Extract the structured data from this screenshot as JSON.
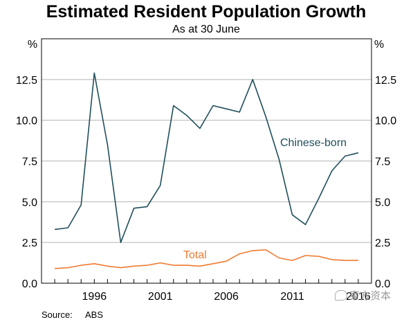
{
  "chart_data": {
    "type": "line",
    "title": "Estimated Resident Population Growth",
    "subtitle": "As at 30 June",
    "unit_left": "%",
    "unit_right": "%",
    "xlabel": "",
    "ylabel": "",
    "ylim": [
      0,
      15
    ],
    "y_ticks": [
      0,
      2.5,
      5,
      7.5,
      10,
      12.5
    ],
    "y_tick_labels": [
      "0.0",
      "2.5",
      "5.0",
      "7.5",
      "10.0",
      "12.5"
    ],
    "xlim": [
      1992,
      2017
    ],
    "x_ticks": [
      1996,
      2001,
      2006,
      2011,
      2016
    ],
    "x_tick_labels": [
      "1996",
      "2001",
      "2006",
      "2011",
      "2016"
    ],
    "grid": true,
    "legend": "inline labels",
    "source_label": "Source:",
    "source_value": "ABS",
    "series": [
      {
        "name": "Chinese-born",
        "color": "#1f4e5a",
        "x": [
          1993,
          1994,
          1995,
          1996,
          1997,
          1998,
          1999,
          2000,
          2001,
          2002,
          2003,
          2004,
          2005,
          2006,
          2007,
          2008,
          2009,
          2010,
          2011,
          2012,
          2013,
          2014,
          2015,
          2016
        ],
        "values": [
          3.3,
          3.4,
          4.8,
          12.9,
          8.5,
          2.5,
          4.6,
          4.7,
          6.0,
          10.9,
          10.3,
          9.5,
          10.9,
          10.7,
          10.5,
          12.5,
          10.2,
          7.6,
          4.2,
          3.6,
          5.2,
          6.9,
          7.8,
          8.0
        ]
      },
      {
        "name": "Total",
        "color": "#f07a30",
        "x": [
          1993,
          1994,
          1995,
          1996,
          1997,
          1998,
          1999,
          2000,
          2001,
          2002,
          2003,
          2004,
          2005,
          2006,
          2007,
          2008,
          2009,
          2010,
          2011,
          2012,
          2013,
          2014,
          2015,
          2016
        ],
        "values": [
          0.9,
          0.95,
          1.1,
          1.2,
          1.05,
          0.95,
          1.05,
          1.1,
          1.25,
          1.1,
          1.1,
          1.05,
          1.2,
          1.35,
          1.8,
          2.0,
          2.05,
          1.55,
          1.4,
          1.7,
          1.65,
          1.45,
          1.4,
          1.4
        ]
      }
    ]
  },
  "watermark": {
    "text": "東方资本",
    "icon": "chat-bubble-icon"
  }
}
